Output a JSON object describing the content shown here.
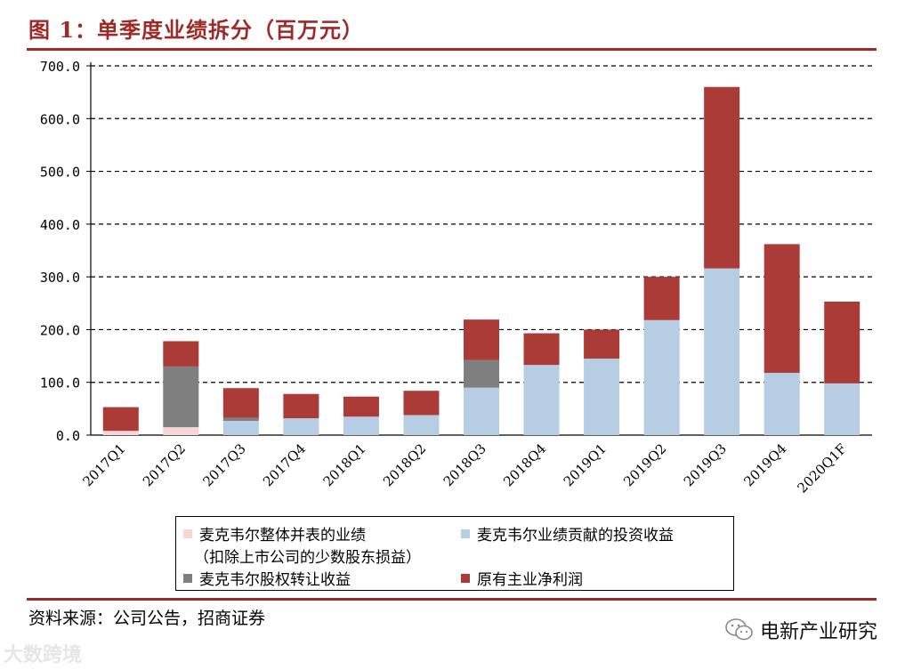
{
  "figure": {
    "title": "图 1：单季度业绩拆分（百万元）",
    "source": "资料来源：公司公告，招商证券",
    "wechat_account": "电新产业研究",
    "watermark": "大数跨境"
  },
  "chart_data": {
    "type": "bar",
    "stacked": true,
    "title": "单季度业绩拆分（百万元）",
    "xlabel": "",
    "ylabel": "",
    "ylim": [
      0,
      700
    ],
    "yticks": [
      "0.0",
      "100.0",
      "200.0",
      "300.0",
      "400.0",
      "500.0",
      "600.0",
      "700.0"
    ],
    "grid": true,
    "legend_position": "bottom",
    "categories": [
      "2017Q1",
      "2017Q2",
      "2017Q3",
      "2017Q4",
      "2018Q1",
      "2018Q2",
      "2018Q3",
      "2018Q4",
      "2019Q1",
      "2019Q2",
      "2019Q3",
      "2019Q4",
      "2020Q1F"
    ],
    "series": [
      {
        "name": "麦克韦尔整体并表的业绩",
        "name_line2": "（扣除上市公司的少数股东损益）",
        "color": "#f6d7d6",
        "values": [
          8,
          15,
          0,
          0,
          0,
          0,
          0,
          0,
          0,
          0,
          0,
          0,
          0
        ]
      },
      {
        "name": "麦克韦尔业绩贡献的投资收益",
        "color": "#b7cde3",
        "values": [
          0,
          0,
          27,
          32,
          35,
          38,
          90,
          133,
          145,
          218,
          316,
          118,
          98
        ]
      },
      {
        "name": "麦克韦尔股权转让收益",
        "color": "#7f7f7f",
        "values": [
          0,
          115,
          6,
          0,
          0,
          0,
          52,
          0,
          0,
          0,
          0,
          0,
          0
        ]
      },
      {
        "name": "原有主业净利润",
        "color": "#aa3b37",
        "values": [
          45,
          48,
          56,
          46,
          38,
          46,
          77,
          60,
          55,
          82,
          344,
          244,
          155
        ]
      }
    ]
  }
}
